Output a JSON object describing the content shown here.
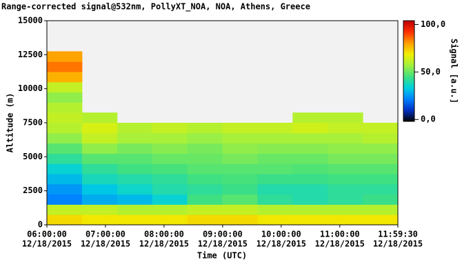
{
  "chart_data": {
    "type": "heatmap",
    "title": "Range-corrected signal@532nm, PollyXT_NOA, NOA, Athens, Greece",
    "xlabel": "Time (UTC)",
    "ylabel": "Altitude (m)",
    "colorbar_label": "Signal [a.u.]",
    "xlim": [
      "06:00:00",
      "11:59:30"
    ],
    "xticks": [
      {
        "time": "06:00:00",
        "date": "12/18/2015"
      },
      {
        "time": "07:00:00",
        "date": "12/18/2015"
      },
      {
        "time": "08:00:00",
        "date": "12/18/2015"
      },
      {
        "time": "09:00:00",
        "date": "12/18/2015"
      },
      {
        "time": "10:00:00",
        "date": "12/18/2015"
      },
      {
        "time": "11:00:00",
        "date": "12/18/2015"
      },
      {
        "time": "11:59:30",
        "date": "12/18/2015"
      }
    ],
    "ylim": [
      0,
      15000
    ],
    "yticks": [
      0,
      2500,
      5000,
      7500,
      10000,
      12500,
      15000
    ],
    "zlim": [
      -2,
      104
    ],
    "zticks": [
      {
        "value": 0,
        "label": "0,0"
      },
      {
        "value": 50,
        "label": "50,0"
      },
      {
        "value": 100,
        "label": "100,0"
      }
    ],
    "colormap": [
      "#000000",
      "#0030c0",
      "#0080ff",
      "#00d0e0",
      "#40e080",
      "#a0f040",
      "#f0f000",
      "#ffa000",
      "#ff3000",
      "#c00000"
    ],
    "z": [
      [
        72,
        62,
        22,
        25,
        30,
        35,
        42,
        48,
        55,
        60,
        62,
        60,
        55,
        62,
        78,
        85,
        80,
        null,
        null,
        null
      ],
      [
        70,
        62,
        28,
        32,
        38,
        42,
        48,
        55,
        62,
        65,
        60,
        null,
        null,
        null,
        null,
        null,
        null,
        null,
        null,
        null
      ],
      [
        70,
        60,
        30,
        36,
        40,
        45,
        48,
        52,
        58,
        60,
        null,
        null,
        null,
        null,
        null,
        null,
        null,
        null,
        null,
        null
      ],
      [
        70,
        60,
        35,
        40,
        42,
        46,
        50,
        54,
        58,
        62,
        null,
        null,
        null,
        null,
        null,
        null,
        null,
        null,
        null,
        null
      ],
      [
        72,
        62,
        45,
        42,
        45,
        48,
        50,
        52,
        56,
        60,
        null,
        null,
        null,
        null,
        null,
        null,
        null,
        null,
        null,
        null
      ],
      [
        72,
        62,
        48,
        44,
        46,
        48,
        52,
        55,
        58,
        62,
        null,
        null,
        null,
        null,
        null,
        null,
        null,
        null,
        null,
        null
      ],
      [
        70,
        60,
        42,
        40,
        44,
        48,
        50,
        54,
        58,
        62,
        null,
        null,
        null,
        null,
        null,
        null,
        null,
        null,
        null,
        null
      ],
      [
        70,
        60,
        40,
        40,
        44,
        47,
        50,
        54,
        58,
        64,
        60,
        null,
        null,
        null,
        null,
        null,
        null,
        null,
        null,
        null
      ],
      [
        70,
        60,
        42,
        42,
        45,
        48,
        52,
        55,
        58,
        62,
        60,
        null,
        null,
        null,
        null,
        null,
        null,
        null,
        null,
        null
      ],
      [
        70,
        60,
        44,
        42,
        45,
        48,
        52,
        55,
        60,
        62,
        null,
        null,
        null,
        null,
        null,
        null,
        null,
        null,
        null,
        null
      ]
    ]
  }
}
